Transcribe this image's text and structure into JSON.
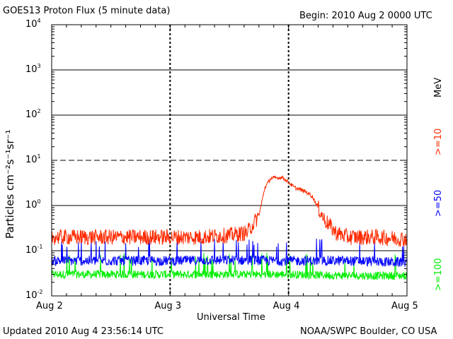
{
  "header": {
    "title": "GOES13 Proton Flux (5 minute data)",
    "begin": "Begin: 2010 Aug 2 0000 UTC"
  },
  "footer": {
    "updated": "Updated 2010 Aug  4 23:56:14 UTC",
    "source": "NOAA/SWPC Boulder, CO USA"
  },
  "colors": {
    "ge10": "#ff2a00",
    "ge50": "#0000ff",
    "ge100": "#00ee00"
  },
  "chart_data": {
    "type": "line",
    "title": "GOES13 Proton Flux (5 minute data)",
    "xlabel": "Universal Time",
    "ylabel": "Particles cm⁻²s⁻¹sr⁻¹",
    "yscale": "log",
    "ylim": [
      0.01,
      10000
    ],
    "xlim_days": [
      0,
      3
    ],
    "x_ticks": [
      "Aug 2",
      "Aug 3",
      "Aug 4",
      "Aug 5"
    ],
    "y_ticks": [
      {
        "base": "10",
        "exp": "-2"
      },
      {
        "base": "10",
        "exp": "-1"
      },
      {
        "base": "10",
        "exp": "0"
      },
      {
        "base": "10",
        "exp": "1"
      },
      {
        "base": "10",
        "exp": "2"
      },
      {
        "base": "10",
        "exp": "3"
      },
      {
        "base": "10",
        "exp": "4"
      }
    ],
    "legend_unit": "MeV",
    "series": [
      {
        "name": ">=10",
        "color": "#ff2a00",
        "points": [
          [
            0.0,
            0.2
          ],
          [
            0.25,
            0.2
          ],
          [
            0.5,
            0.2
          ],
          [
            0.75,
            0.2
          ],
          [
            1.0,
            0.2
          ],
          [
            1.25,
            0.2
          ],
          [
            1.5,
            0.22
          ],
          [
            1.65,
            0.25
          ],
          [
            1.75,
            0.6
          ],
          [
            1.8,
            2.5
          ],
          [
            1.85,
            4.0
          ],
          [
            1.95,
            4.2
          ],
          [
            2.05,
            2.5
          ],
          [
            2.15,
            2.0
          ],
          [
            2.2,
            1.6
          ],
          [
            2.3,
            0.5
          ],
          [
            2.4,
            0.25
          ],
          [
            2.5,
            0.2
          ],
          [
            2.75,
            0.2
          ],
          [
            3.0,
            0.18
          ]
        ]
      },
      {
        "name": ">=50",
        "color": "#0000ff",
        "points": [
          [
            0.0,
            0.06
          ],
          [
            0.5,
            0.06
          ],
          [
            1.0,
            0.06
          ],
          [
            1.5,
            0.062
          ],
          [
            2.0,
            0.06
          ],
          [
            2.5,
            0.06
          ],
          [
            3.0,
            0.055
          ]
        ]
      },
      {
        "name": ">=100",
        "color": "#00ee00",
        "points": [
          [
            0.0,
            0.03
          ],
          [
            0.5,
            0.03
          ],
          [
            1.0,
            0.03
          ],
          [
            1.5,
            0.03
          ],
          [
            2.0,
            0.03
          ],
          [
            2.5,
            0.028
          ],
          [
            3.0,
            0.028
          ]
        ]
      }
    ]
  }
}
